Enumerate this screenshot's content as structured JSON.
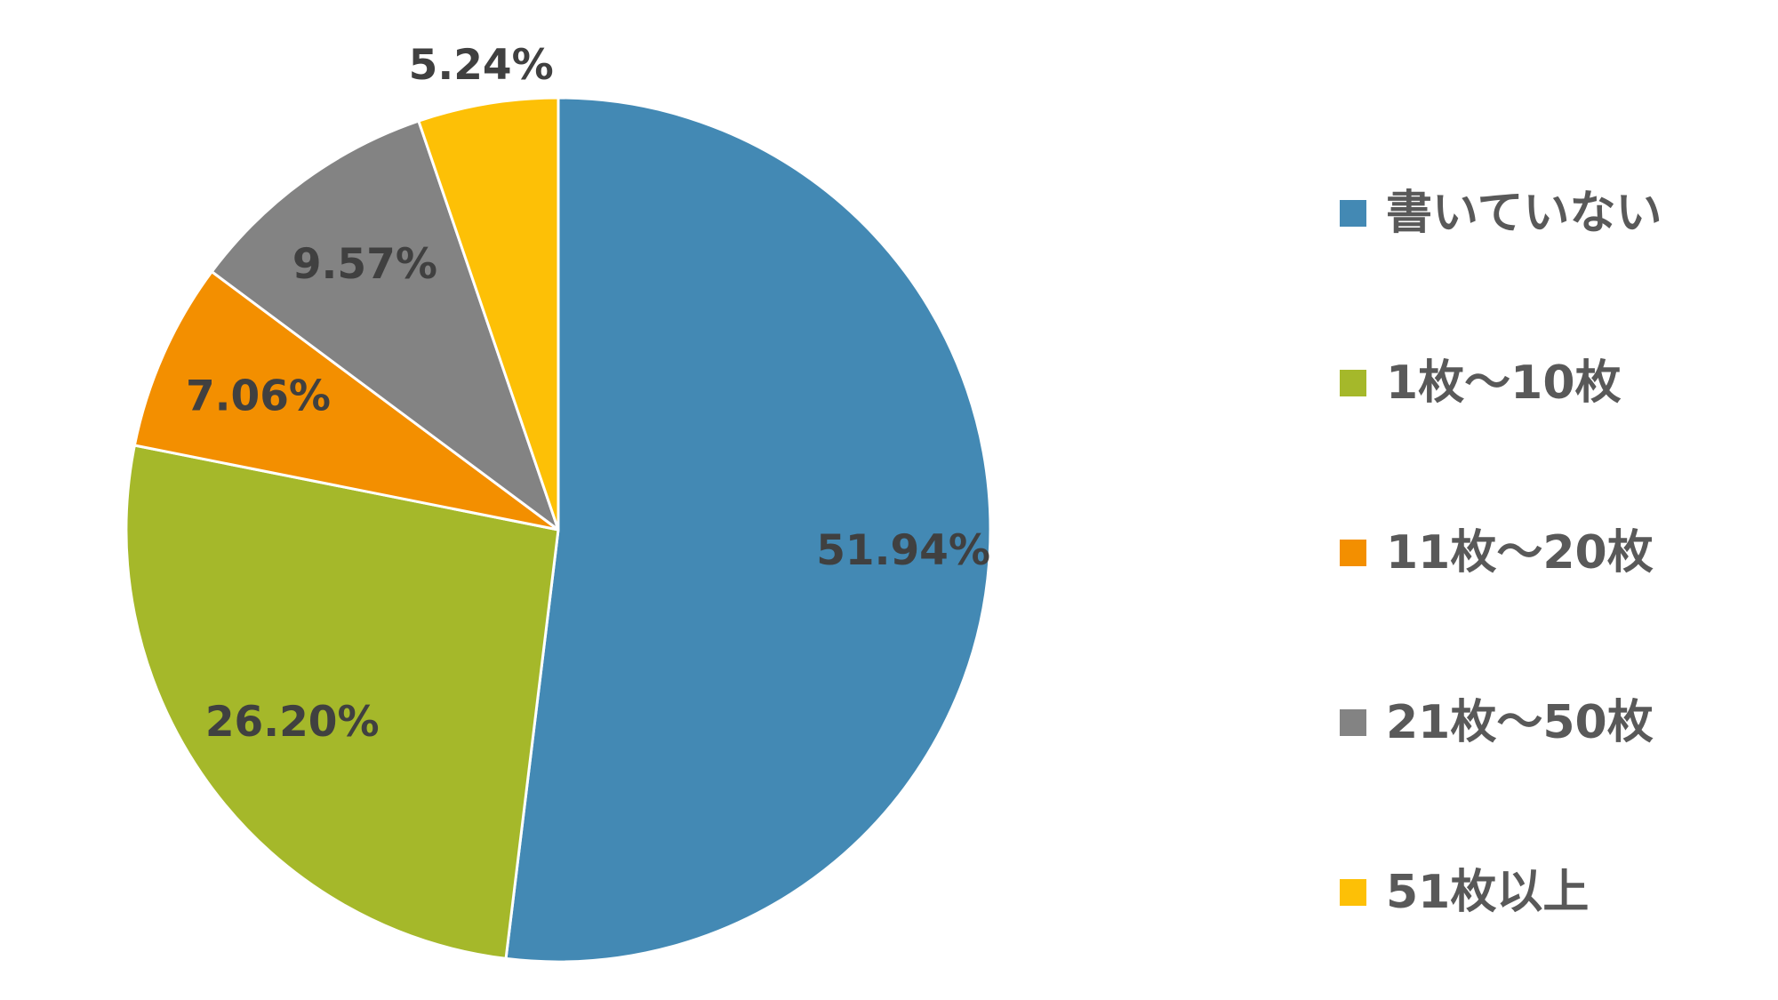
{
  "chart_data": {
    "type": "pie",
    "categories": [
      "書いていない",
      "1枚〜10枚",
      "11枚〜20枚",
      "21枚〜50枚",
      "51枚以上"
    ],
    "values": [
      51.94,
      26.2,
      7.06,
      9.57,
      5.24
    ],
    "data_labels": [
      "51.94%",
      "26.20%",
      "7.06%",
      "9.57%",
      "5.24%"
    ],
    "colors": [
      "#4389b4",
      "#a5b82a",
      "#f38f00",
      "#838383",
      "#fdc006"
    ],
    "start_angle": "12 o'clock",
    "direction": "clockwise",
    "legend": {
      "position": "right",
      "entries": [
        "書いていない",
        "1枚〜10枚",
        "11枚〜20枚",
        "21枚〜50枚",
        "51枚以上"
      ]
    },
    "title": ""
  }
}
